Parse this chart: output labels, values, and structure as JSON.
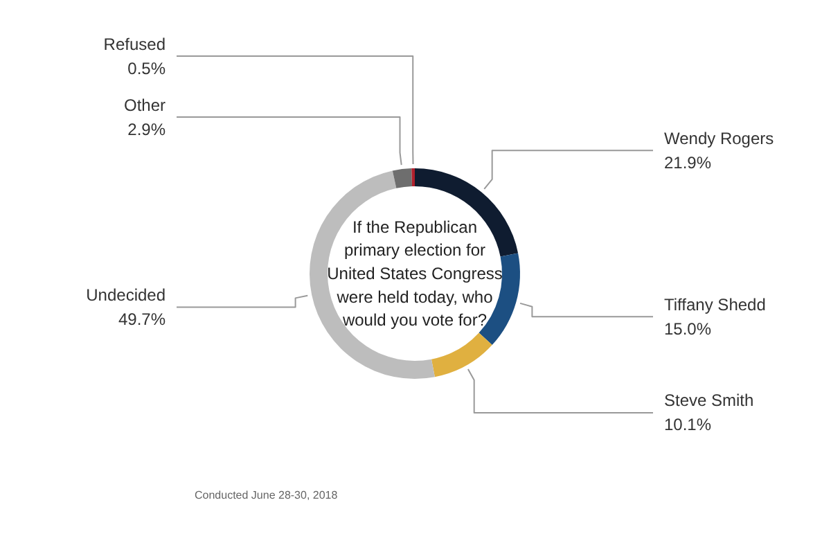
{
  "chart_data": {
    "type": "donut",
    "title": "If the Republican primary election for United States Congress were held today, who would you vote for?",
    "categories": [
      "Wendy Rogers",
      "Tiffany Shedd",
      "Steve Smith",
      "Undecided",
      "Other",
      "Refused"
    ],
    "values": [
      21.9,
      15.0,
      10.1,
      49.7,
      2.9,
      0.5
    ],
    "colors": [
      "#0f1c30",
      "#1c4f82",
      "#e0b040",
      "#bdbdbd",
      "#6e6e6e",
      "#b0202c"
    ],
    "value_labels": [
      "21.9%",
      "15.0%",
      "10.1%",
      "49.7%",
      "2.9%",
      "0.5%"
    ],
    "annotations": [
      "Conducted June 28-30, 2018"
    ]
  }
}
